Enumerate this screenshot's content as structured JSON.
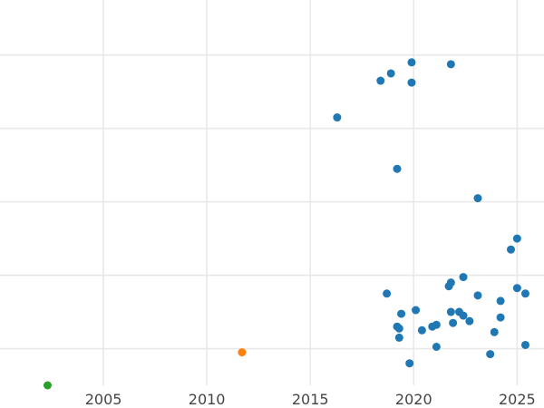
{
  "chart_data": {
    "type": "scatter",
    "title": "",
    "xlabel": "",
    "ylabel": "",
    "grid": true,
    "xlim": [
      2000.0,
      2026.3
    ],
    "ylim": [
      0,
      10.5
    ],
    "xticks": [
      2005,
      2010,
      2015,
      2020,
      2025
    ],
    "xtick_labels": [
      "2005",
      "2010",
      "2015",
      "2020",
      "2025"
    ],
    "yticks": [
      1,
      3,
      5,
      7,
      9
    ],
    "series": [
      {
        "color": "#1f77b4",
        "points": [
          [
            2018.4,
            8.3
          ],
          [
            2018.9,
            8.5
          ],
          [
            2019.9,
            8.8
          ],
          [
            2019.9,
            8.25
          ],
          [
            2021.8,
            8.75
          ],
          [
            2016.3,
            7.3
          ],
          [
            2019.2,
            5.9
          ],
          [
            2023.1,
            5.1
          ],
          [
            2025.0,
            4.0
          ],
          [
            2024.7,
            3.7
          ],
          [
            2022.4,
            2.95
          ],
          [
            2021.8,
            2.8
          ],
          [
            2021.7,
            2.7
          ],
          [
            2025.0,
            2.65
          ],
          [
            2025.4,
            2.5
          ],
          [
            2018.7,
            2.5
          ],
          [
            2023.1,
            2.45
          ],
          [
            2024.2,
            2.3
          ],
          [
            2020.1,
            2.05
          ],
          [
            2019.4,
            1.95
          ],
          [
            2021.8,
            2.0
          ],
          [
            2022.2,
            2.0
          ],
          [
            2022.4,
            1.9
          ],
          [
            2024.2,
            1.85
          ],
          [
            2021.9,
            1.7
          ],
          [
            2022.7,
            1.75
          ],
          [
            2021.1,
            1.65
          ],
          [
            2019.2,
            1.6
          ],
          [
            2019.3,
            1.55
          ],
          [
            2020.9,
            1.6
          ],
          [
            2020.4,
            1.5
          ],
          [
            2023.9,
            1.45
          ],
          [
            2019.3,
            1.3
          ],
          [
            2021.1,
            1.05
          ],
          [
            2025.4,
            1.1
          ],
          [
            2023.7,
            0.85
          ],
          [
            2019.8,
            0.6
          ]
        ]
      },
      {
        "color": "#ff7f0e",
        "points": [
          [
            2011.7,
            0.9
          ]
        ]
      },
      {
        "color": "#2ca02c",
        "points": [
          [
            2002.3,
            0.0
          ]
        ]
      }
    ]
  }
}
